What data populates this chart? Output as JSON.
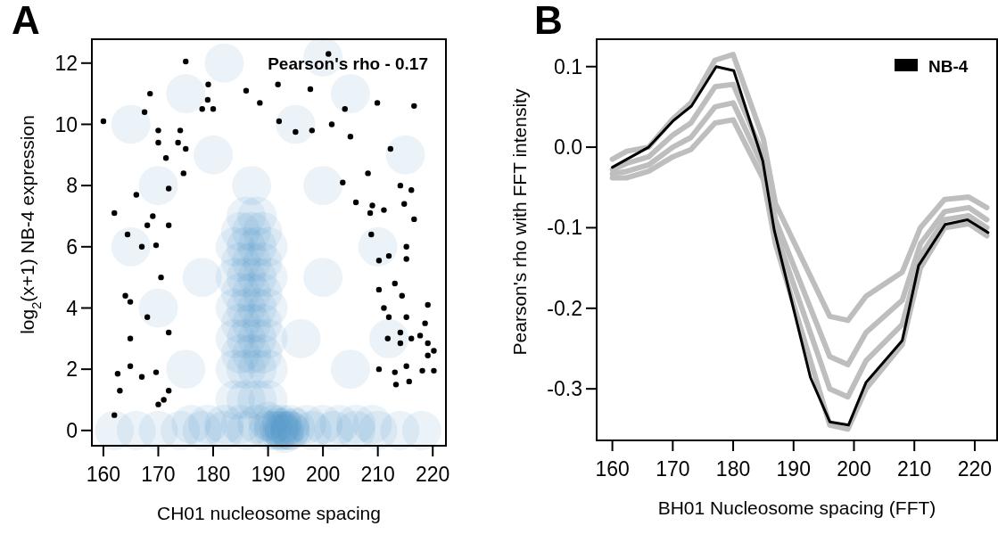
{
  "chart_data": [
    {
      "type": "scatter",
      "title": "A",
      "xlabel": "CH01 nucleosome spacing",
      "ylabel": "log$_{2}$(x+1) NB-4 expression",
      "xlim": [
        157.9,
        222.4
      ],
      "ylim": [
        -0.5,
        12.78
      ],
      "xticks": [
        160,
        170,
        180,
        190,
        200,
        210,
        220
      ],
      "yticks": [
        0,
        2,
        4,
        6,
        8,
        10,
        12
      ],
      "grid": false,
      "legend": false,
      "marker": "circle",
      "annotations": [
        "Pearson's rho - 0.17"
      ],
      "series": [
        {
          "color": "#3d8ac6",
          "x": [
            184,
            186,
            188,
            190,
            184,
            186,
            188,
            190,
            184,
            186,
            188,
            190,
            184,
            186,
            188,
            190,
            184,
            186,
            188,
            190,
            184,
            186,
            188,
            190,
            185,
            187,
            189,
            185,
            187,
            189,
            185,
            187,
            189,
            185,
            187,
            189,
            185,
            187,
            189,
            186,
            188,
            187,
            191,
            192,
            193,
            194,
            192.5,
            193,
            190,
            195,
            192,
            192.5,
            193,
            162,
            166,
            170,
            174,
            178,
            182,
            186,
            190,
            194,
            198,
            202,
            206,
            210,
            214,
            218,
            176,
            179,
            182,
            185,
            188,
            191,
            194,
            197,
            200,
            203,
            206,
            209,
            165,
            170,
            175,
            180,
            195,
            200,
            205,
            210,
            215,
            170,
            165,
            212,
            200,
            178,
            196,
            182,
            200,
            175,
            205
          ],
          "values": [
            1,
            1,
            1,
            1,
            2,
            2,
            2,
            2,
            3,
            3,
            3,
            3,
            4,
            4,
            4,
            4,
            5,
            5,
            5,
            5,
            6,
            6,
            6,
            6,
            2.5,
            2.5,
            2.5,
            3.5,
            3.5,
            3.5,
            4.5,
            4.5,
            4.5,
            5.5,
            5.5,
            5.5,
            6.5,
            6.5,
            6.5,
            7,
            7,
            8,
            0,
            0,
            0,
            0,
            0.2,
            -0.1,
            0.3,
            0.1,
            0.1,
            0,
            0.1,
            0,
            0,
            0,
            0,
            0,
            0,
            0,
            0,
            0,
            0,
            0,
            0,
            0,
            0,
            0,
            0.2,
            0.2,
            0.2,
            0.2,
            0.2,
            0.2,
            0.2,
            0.2,
            0.2,
            0.2,
            0.2,
            0.2,
            10,
            8,
            11,
            9,
            10,
            8,
            11,
            6,
            9,
            4,
            6,
            3,
            5,
            5,
            3,
            12,
            12.2,
            2,
            2
          ]
        },
        {
          "color": "#000000",
          "x": [
            160,
            162,
            162.6,
            162,
            163,
            164.4,
            164,
            164.9,
            164.9,
            164.9,
            166,
            167,
            167.5,
            168,
            168,
            167,
            168.5,
            169,
            169.6,
            169.6,
            170,
            170,
            171.4,
            171.9,
            171.9,
            170.5,
            171.9,
            171.9,
            171,
            170,
            173.6,
            174,
            174.6,
            175,
            175,
            178,
            179,
            179.1,
            180,
            186,
            188.5,
            191.8,
            192,
            195,
            197.7,
            198,
            201,
            201.6,
            203.6,
            204,
            205,
            206,
            208.6,
            208.2,
            208.8,
            209,
            209.9,
            210.2,
            210.2,
            210.2,
            211.1,
            211.8,
            212,
            212.3,
            211.1,
            212,
            213.1,
            213.1,
            213.3,
            214.1,
            214.4,
            214.1,
            214.1,
            214.8,
            215.2,
            215.2,
            215.2,
            215.2,
            215.7,
            216.1,
            216.1,
            216.6,
            216.6,
            217.7,
            218.1,
            218.6,
            219.1,
            219.1,
            219.1,
            220.2,
            220.2
          ],
          "values": [
            10.1,
            7.1,
            1.85,
            0.5,
            1.3,
            6.4,
            4.4,
            4.2,
            3.0,
            2.1,
            7.7,
            6.0,
            10.4,
            6.7,
            3.7,
            1.75,
            11.0,
            7.0,
            6.05,
            1.9,
            9.8,
            9.4,
            8.9,
            7.9,
            6.7,
            5.0,
            3.2,
            1.3,
            1.0,
            0.85,
            9.4,
            9.8,
            8.4,
            9.2,
            12.05,
            10.5,
            10.8,
            11.3,
            10.5,
            11.1,
            10.7,
            11.3,
            10.1,
            9.75,
            11.15,
            9.8,
            12.3,
            10.0,
            8.1,
            10.5,
            9.6,
            7.45,
            7.1,
            8.4,
            6.4,
            7.35,
            10.7,
            5.55,
            4.6,
            2.0,
            7.2,
            3.0,
            5.7,
            9.2,
            4.0,
            3.7,
            4.8,
            1.9,
            1.5,
            8.0,
            4.4,
            3.2,
            2.85,
            7.4,
            6.0,
            5.6,
            3.7,
            2.1,
            1.6,
            7.85,
            3.0,
            6.9,
            10.6,
            3.1,
            1.95,
            3.5,
            4.1,
            2.85,
            2.45,
            2.6,
            1.95
          ]
        }
      ]
    },
    {
      "type": "line",
      "title": "B",
      "xlabel": "BH01 Nucleosome spacing (FFT)",
      "ylabel": "Pearson's rho with FFT intensity",
      "xlim": [
        157.4,
        223.7
      ],
      "ylim": [
        -0.364,
        0.134
      ],
      "xticks": [
        160,
        170,
        180,
        190,
        200,
        210,
        220
      ],
      "yticks": [
        {
          "value": 0.1,
          "label": "0.1"
        },
        {
          "value": 0,
          "label": "0.0"
        },
        {
          "value": -0.1,
          "label": "-0.1"
        },
        {
          "value": -0.2,
          "label": "-0.2"
        },
        {
          "value": -0.3,
          "label": "-0.3"
        }
      ],
      "grid": false,
      "legend": "top right",
      "marker": "none",
      "line_style": "solid",
      "series": [
        {
          "color": "#bebebe",
          "x": [
            160,
            162.4,
            166,
            170,
            173,
            177,
            180,
            185,
            187,
            196,
            199,
            202,
            208,
            211,
            215,
            219,
            222
          ],
          "values": [
            -0.015,
            -0.005,
            0.0,
            0.035,
            0.055,
            0.108,
            0.115,
            0.01,
            -0.07,
            -0.21,
            -0.215,
            -0.185,
            -0.155,
            -0.1,
            -0.065,
            -0.062,
            -0.075
          ]
        },
        {
          "color": "#bebebe",
          "x": [
            160,
            162.4,
            166,
            170,
            173,
            177,
            180,
            185,
            187,
            196,
            199,
            202,
            208,
            211,
            215,
            219,
            222
          ],
          "values": [
            -0.028,
            -0.02,
            -0.012,
            0.015,
            0.03,
            0.075,
            0.078,
            -0.01,
            -0.09,
            -0.26,
            -0.27,
            -0.23,
            -0.19,
            -0.12,
            -0.08,
            -0.075,
            -0.09
          ]
        },
        {
          "color": "#bebebe",
          "x": [
            160,
            162.4,
            166,
            170,
            173,
            177,
            180,
            185,
            187,
            196,
            199,
            202,
            208,
            211,
            215,
            219,
            222
          ],
          "values": [
            -0.033,
            -0.03,
            -0.022,
            0.0,
            0.012,
            0.05,
            0.055,
            -0.025,
            -0.105,
            -0.3,
            -0.31,
            -0.265,
            -0.22,
            -0.135,
            -0.09,
            -0.085,
            -0.1
          ]
        },
        {
          "color": "#bebebe",
          "x": [
            160,
            162.4,
            166,
            170,
            173,
            177,
            180,
            185,
            187,
            196,
            199,
            202,
            208,
            211,
            215,
            219,
            222
          ],
          "values": [
            -0.038,
            -0.038,
            -0.03,
            -0.012,
            -0.003,
            0.03,
            0.034,
            -0.04,
            -0.12,
            -0.345,
            -0.35,
            -0.3,
            -0.245,
            -0.15,
            -0.1,
            -0.095,
            -0.11
          ]
        },
        {
          "name": "NB-4",
          "color": "#000000",
          "x": [
            160,
            162.4,
            166,
            170.1,
            173.1,
            177.2,
            180.1,
            184.9,
            186.8,
            192.8,
            196,
            199.1,
            202,
            208,
            210.7,
            215.1,
            218.8,
            222.2
          ],
          "values": [
            -0.025,
            -0.015,
            0.0,
            0.033,
            0.051,
            0.1,
            0.095,
            -0.017,
            -0.103,
            -0.286,
            -0.341,
            -0.345,
            -0.292,
            -0.24,
            -0.147,
            -0.096,
            -0.09,
            -0.106
          ]
        }
      ]
    }
  ]
}
